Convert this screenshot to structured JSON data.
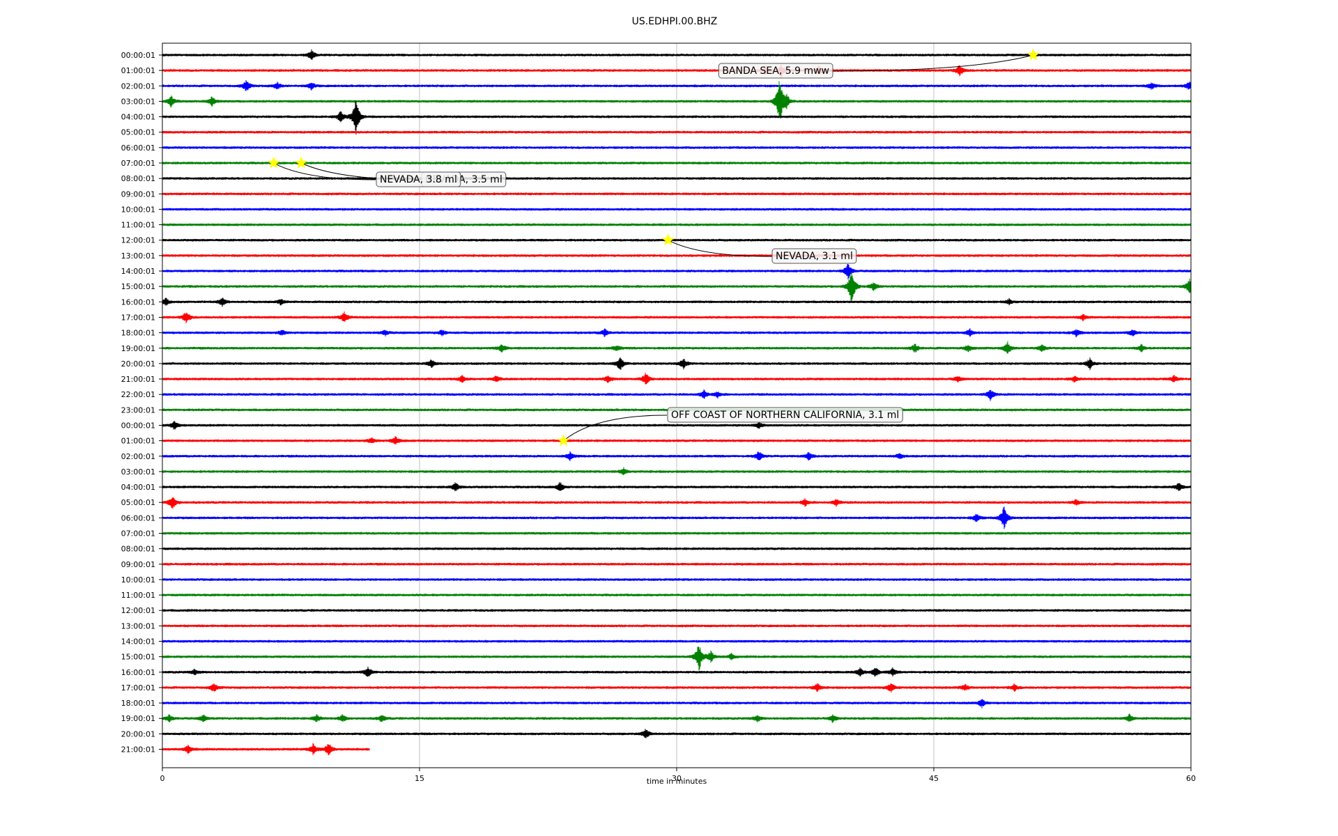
{
  "chart_data": {
    "type": "line",
    "title": "US.EDHPI.00.BHZ",
    "xlabel": "time in minutes",
    "ylabel": "",
    "xlim": [
      0,
      60
    ],
    "xticks": [
      "0",
      "15",
      "30",
      "45",
      "60"
    ],
    "grid": "vertical",
    "colors": [
      "#000000",
      "#ff0000",
      "#0000ff",
      "#008000"
    ],
    "trace_labels": [
      "00:00:01",
      "01:00:01",
      "02:00:01",
      "03:00:01",
      "04:00:01",
      "05:00:01",
      "06:00:01",
      "07:00:01",
      "08:00:01",
      "09:00:01",
      "10:00:01",
      "11:00:01",
      "12:00:01",
      "13:00:01",
      "14:00:01",
      "15:00:01",
      "16:00:01",
      "17:00:01",
      "18:00:01",
      "19:00:01",
      "20:00:01",
      "21:00:01",
      "22:00:01",
      "23:00:01",
      "00:00:01",
      "01:00:01",
      "02:00:01",
      "03:00:01",
      "04:00:01",
      "05:00:01",
      "06:00:01",
      "07:00:01",
      "08:00:01",
      "09:00:01",
      "10:00:01",
      "11:00:01",
      "12:00:01",
      "13:00:01",
      "14:00:01",
      "15:00:01",
      "16:00:01",
      "17:00:01",
      "18:00:01",
      "19:00:01",
      "20:00:01",
      "21:00:01"
    ],
    "last_trace_end_minutes": 12.1,
    "bursts": [
      {
        "row": 0,
        "t": 8.7,
        "a": 7
      },
      {
        "row": 1,
        "t": 35.2,
        "a": 6
      },
      {
        "row": 1,
        "t": 36.1,
        "a": 9
      },
      {
        "row": 1,
        "t": 38.3,
        "a": 7
      },
      {
        "row": 1,
        "t": 46.5,
        "a": 8
      },
      {
        "row": 2,
        "t": 4.9,
        "a": 8
      },
      {
        "row": 2,
        "t": 6.7,
        "a": 5
      },
      {
        "row": 2,
        "t": 8.7,
        "a": 5
      },
      {
        "row": 2,
        "t": 57.7,
        "a": 5
      },
      {
        "row": 2,
        "t": 59.9,
        "a": 6
      },
      {
        "row": 3,
        "t": 0.5,
        "a": 8
      },
      {
        "row": 3,
        "t": 2.9,
        "a": 7
      },
      {
        "row": 3,
        "t": 36.0,
        "a": 38
      },
      {
        "row": 3,
        "t": 36.4,
        "a": 10
      },
      {
        "row": 4,
        "t": 10.4,
        "a": 8
      },
      {
        "row": 4,
        "t": 11.3,
        "a": 28
      },
      {
        "row": 14,
        "t": 40.0,
        "a": 12
      },
      {
        "row": 15,
        "t": 40.2,
        "a": 28
      },
      {
        "row": 15,
        "t": 41.5,
        "a": 6
      },
      {
        "row": 15,
        "t": 59.9,
        "a": 12
      },
      {
        "row": 16,
        "t": 0.2,
        "a": 5
      },
      {
        "row": 16,
        "t": 3.5,
        "a": 6
      },
      {
        "row": 16,
        "t": 6.9,
        "a": 4
      },
      {
        "row": 16,
        "t": 49.4,
        "a": 4
      },
      {
        "row": 17,
        "t": 1.4,
        "a": 9
      },
      {
        "row": 17,
        "t": 10.6,
        "a": 8
      },
      {
        "row": 17,
        "t": 53.7,
        "a": 4
      },
      {
        "row": 18,
        "t": 7.0,
        "a": 4
      },
      {
        "row": 18,
        "t": 13.0,
        "a": 4
      },
      {
        "row": 18,
        "t": 16.3,
        "a": 4
      },
      {
        "row": 18,
        "t": 25.8,
        "a": 5
      },
      {
        "row": 18,
        "t": 47.1,
        "a": 5
      },
      {
        "row": 18,
        "t": 53.3,
        "a": 5
      },
      {
        "row": 18,
        "t": 56.6,
        "a": 5
      },
      {
        "row": 19,
        "t": 19.8,
        "a": 6
      },
      {
        "row": 19,
        "t": 26.5,
        "a": 4
      },
      {
        "row": 19,
        "t": 43.9,
        "a": 6
      },
      {
        "row": 19,
        "t": 47.0,
        "a": 5
      },
      {
        "row": 19,
        "t": 49.3,
        "a": 9
      },
      {
        "row": 19,
        "t": 51.3,
        "a": 5
      },
      {
        "row": 19,
        "t": 57.1,
        "a": 5
      },
      {
        "row": 20,
        "t": 15.7,
        "a": 6
      },
      {
        "row": 20,
        "t": 26.7,
        "a": 10
      },
      {
        "row": 20,
        "t": 30.4,
        "a": 7
      },
      {
        "row": 20,
        "t": 54.1,
        "a": 8
      },
      {
        "row": 21,
        "t": 17.5,
        "a": 5
      },
      {
        "row": 21,
        "t": 19.5,
        "a": 5
      },
      {
        "row": 21,
        "t": 26.0,
        "a": 5
      },
      {
        "row": 21,
        "t": 28.2,
        "a": 9
      },
      {
        "row": 21,
        "t": 46.4,
        "a": 4
      },
      {
        "row": 21,
        "t": 53.2,
        "a": 4
      },
      {
        "row": 21,
        "t": 59.0,
        "a": 5
      },
      {
        "row": 22,
        "t": 31.6,
        "a": 6
      },
      {
        "row": 22,
        "t": 32.4,
        "a": 4
      },
      {
        "row": 22,
        "t": 48.3,
        "a": 8
      },
      {
        "row": 24,
        "t": 0.7,
        "a": 6
      },
      {
        "row": 24,
        "t": 34.8,
        "a": 4
      },
      {
        "row": 25,
        "t": 12.2,
        "a": 4
      },
      {
        "row": 25,
        "t": 13.6,
        "a": 6
      },
      {
        "row": 26,
        "t": 23.8,
        "a": 6
      },
      {
        "row": 26,
        "t": 34.8,
        "a": 7
      },
      {
        "row": 26,
        "t": 37.7,
        "a": 6
      },
      {
        "row": 26,
        "t": 43.0,
        "a": 4
      },
      {
        "row": 27,
        "t": 26.9,
        "a": 5
      },
      {
        "row": 28,
        "t": 17.1,
        "a": 6
      },
      {
        "row": 28,
        "t": 23.2,
        "a": 7
      },
      {
        "row": 28,
        "t": 59.3,
        "a": 6
      },
      {
        "row": 29,
        "t": 0.6,
        "a": 10
      },
      {
        "row": 29,
        "t": 37.5,
        "a": 5
      },
      {
        "row": 29,
        "t": 39.3,
        "a": 5
      },
      {
        "row": 29,
        "t": 53.3,
        "a": 4
      },
      {
        "row": 30,
        "t": 47.5,
        "a": 6
      },
      {
        "row": 30,
        "t": 49.1,
        "a": 18
      },
      {
        "row": 39,
        "t": 31.3,
        "a": 22
      },
      {
        "row": 39,
        "t": 32.0,
        "a": 8
      },
      {
        "row": 39,
        "t": 33.2,
        "a": 4
      },
      {
        "row": 40,
        "t": 1.9,
        "a": 4
      },
      {
        "row": 40,
        "t": 12.0,
        "a": 8
      },
      {
        "row": 40,
        "t": 40.7,
        "a": 6
      },
      {
        "row": 40,
        "t": 41.6,
        "a": 7
      },
      {
        "row": 40,
        "t": 42.6,
        "a": 5
      },
      {
        "row": 41,
        "t": 3.0,
        "a": 6
      },
      {
        "row": 41,
        "t": 38.2,
        "a": 6
      },
      {
        "row": 41,
        "t": 42.5,
        "a": 7
      },
      {
        "row": 41,
        "t": 46.8,
        "a": 5
      },
      {
        "row": 41,
        "t": 49.7,
        "a": 5
      },
      {
        "row": 42,
        "t": 47.8,
        "a": 6
      },
      {
        "row": 43,
        "t": 0.4,
        "a": 5
      },
      {
        "row": 43,
        "t": 2.4,
        "a": 5
      },
      {
        "row": 43,
        "t": 9.0,
        "a": 5
      },
      {
        "row": 43,
        "t": 10.5,
        "a": 5
      },
      {
        "row": 43,
        "t": 12.8,
        "a": 5
      },
      {
        "row": 43,
        "t": 34.7,
        "a": 5
      },
      {
        "row": 43,
        "t": 39.1,
        "a": 5
      },
      {
        "row": 43,
        "t": 56.4,
        "a": 6
      },
      {
        "row": 44,
        "t": 28.2,
        "a": 7
      },
      {
        "row": 45,
        "t": 1.5,
        "a": 6
      },
      {
        "row": 45,
        "t": 8.8,
        "a": 8
      },
      {
        "row": 45,
        "t": 9.7,
        "a": 10
      }
    ],
    "events": [
      {
        "label": "BANDA SEA, 5.9 mww",
        "row": 0,
        "t": 50.8
      },
      {
        "label": "NEVADA, 3.5 ml",
        "row": 7,
        "t": 8.1
      },
      {
        "label": "NEVADA, 3.8 ml",
        "row": 7,
        "t": 6.5
      },
      {
        "label": "NEVADA, 3.1 ml",
        "row": 12,
        "t": 29.5
      },
      {
        "label": "OFF COAST OF NORTHERN CALIFORNIA, 3.1 ml",
        "row": 25,
        "t": 23.4
      }
    ]
  }
}
